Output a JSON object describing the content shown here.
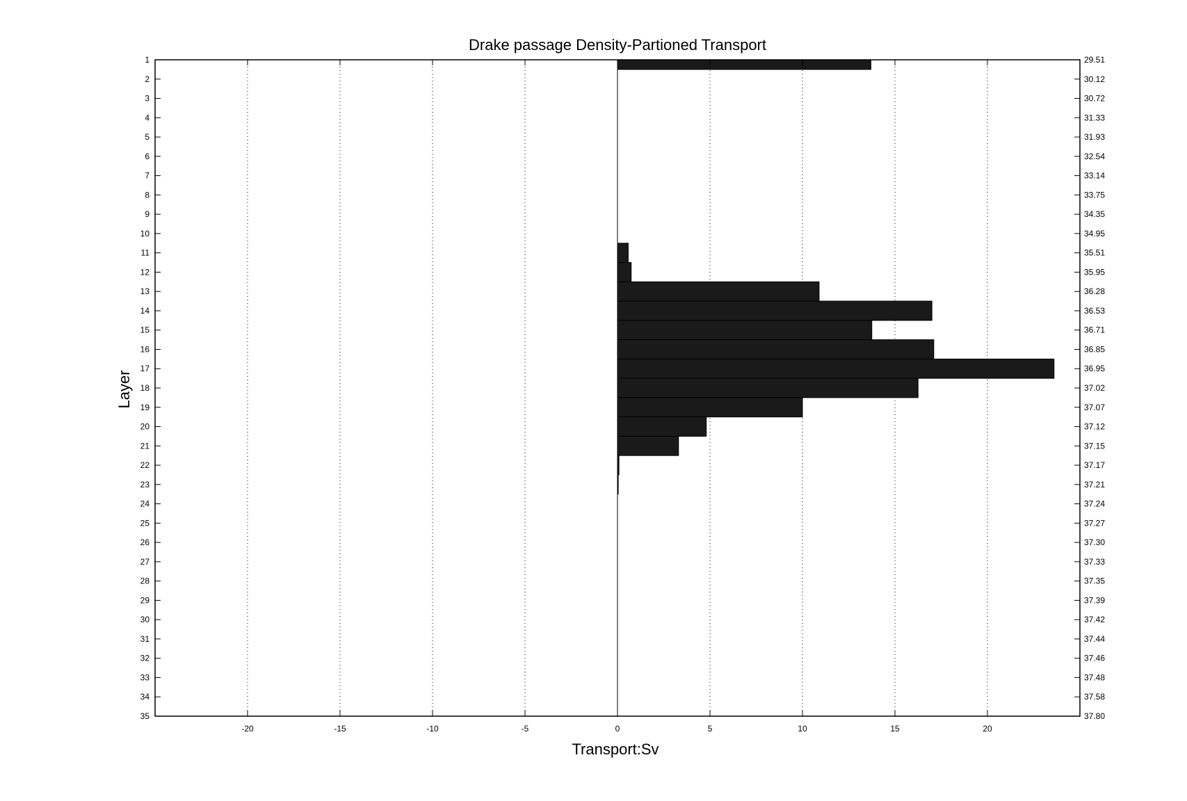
{
  "chart_data": {
    "type": "bar",
    "orientation": "horizontal",
    "title": "Drake passage Density-Partioned Transport",
    "xlabel": "Transport:Sv",
    "ylabel": "Layer",
    "xlim": [
      -25,
      25
    ],
    "ylim": [
      1,
      35
    ],
    "y_reversed": true,
    "grid": "vertical dotted",
    "bar_color": "#1a1a1a",
    "xticks": [
      -20,
      -15,
      -10,
      -5,
      0,
      5,
      10,
      15,
      20
    ],
    "categories": [
      1,
      2,
      3,
      4,
      5,
      6,
      7,
      8,
      9,
      10,
      11,
      12,
      13,
      14,
      15,
      16,
      17,
      18,
      19,
      20,
      21,
      22,
      23,
      24,
      25,
      26,
      27,
      28,
      29,
      30,
      31,
      32,
      33,
      34,
      35
    ],
    "values": [
      13.7,
      0,
      0,
      0,
      0,
      0,
      0,
      0,
      0,
      0,
      0.58,
      0.74,
      10.9,
      17.0,
      13.75,
      17.1,
      23.6,
      16.25,
      10.0,
      4.8,
      3.3,
      0.08,
      0.04,
      0,
      0,
      0,
      0,
      0,
      0,
      0,
      0,
      0,
      0,
      0,
      0
    ],
    "right_tick_labels": [
      "29.51",
      "30.12",
      "30.72",
      "31.33",
      "31.93",
      "32.54",
      "33.14",
      "33.75",
      "34.35",
      "34.95",
      "35.51",
      "35.95",
      "36.28",
      "36.53",
      "36.71",
      "36.85",
      "36.95",
      "37.02",
      "37.07",
      "37.12",
      "37.15",
      "37.17",
      "37.21",
      "37.24",
      "37.27",
      "37.30",
      "37.33",
      "37.35",
      "37.39",
      "37.42",
      "37.44",
      "37.46",
      "37.48",
      "37.58",
      "37.80"
    ]
  }
}
